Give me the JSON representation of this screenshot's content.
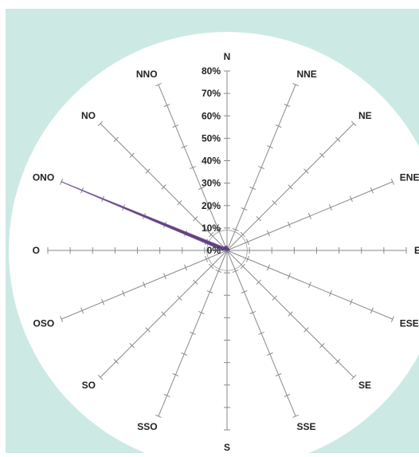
{
  "colors": {
    "background": "#cde9e4",
    "plot_area": "#ffffff",
    "series_fill": "#5b3a78",
    "series_stroke": "#7a5a9a",
    "axis": "#8a8a8a"
  },
  "chart_data": {
    "type": "radar",
    "title": "",
    "directions": [
      "N",
      "NNE",
      "NE",
      "ENE",
      "E",
      "ESE",
      "SE",
      "SSE",
      "S",
      "SSO",
      "SO",
      "OSO",
      "O",
      "ONO",
      "NO",
      "NNO"
    ],
    "r_ticks": [
      "0%",
      "10%",
      "20%",
      "30%",
      "40%",
      "50%",
      "60%",
      "70%",
      "80%"
    ],
    "rlim": [
      0,
      80
    ],
    "grid": true,
    "legend": "none",
    "series": [
      {
        "values": [
          2,
          1,
          1,
          1,
          1,
          0,
          0,
          0,
          0,
          0,
          0,
          0,
          2,
          80,
          2,
          2
        ]
      }
    ]
  }
}
